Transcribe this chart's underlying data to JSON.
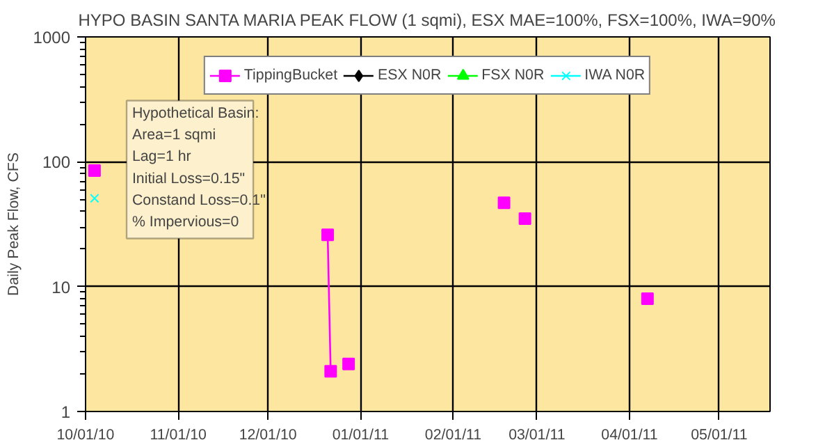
{
  "chart_data": {
    "type": "line",
    "title": "HYPO BASIN SANTA MARIA PEAK FLOW (1 sqmi), ESX MAE=100%, FSX=100%, IWA=90%",
    "ylabel": "Daily Peak Flow, CFS",
    "log": "y",
    "xlim": [
      "2010-10-01",
      "2011-05-18"
    ],
    "xticks": [
      {
        "value": "2010-10-01",
        "label": "10/01/10"
      },
      {
        "value": "2010-11-01",
        "label": "11/01/10"
      },
      {
        "value": "2010-12-01",
        "label": "12/01/10"
      },
      {
        "value": "2011-01-01",
        "label": "01/01/11"
      },
      {
        "value": "2011-02-01",
        "label": "02/01/11"
      },
      {
        "value": "2011-03-01",
        "label": "03/01/11"
      },
      {
        "value": "2011-04-01",
        "label": "04/01/11"
      },
      {
        "value": "2011-05-01",
        "label": "05/01/11"
      }
    ],
    "ylim": [
      1,
      1000
    ],
    "yticks": [
      1,
      10,
      100,
      1000
    ],
    "grid": true,
    "legend": "top",
    "series": [
      {
        "name": "TippingBucket",
        "color": "#ff00ff",
        "marker": "square",
        "x": [
          "2010-10-04",
          "2010-10-05",
          "2010-12-21",
          "2010-12-22",
          "2010-12-23",
          "2010-12-28",
          "2010-12-29",
          "2011-02-18",
          "2011-02-19",
          "2011-02-25",
          "2011-02-26",
          "2011-04-07"
        ],
        "values": [
          85,
          null,
          26,
          2.1,
          null,
          2.4,
          null,
          47,
          null,
          35,
          null,
          8
        ]
      },
      {
        "name": "ESX N0R",
        "color": "#000000",
        "marker": "diamond"
      },
      {
        "name": "FSX N0R",
        "color": "#00ff00",
        "marker": "triangle"
      },
      {
        "name": "IWA N0R",
        "color": "#00ffff",
        "marker": "cross",
        "x": [
          "2010-10-04"
        ],
        "values": [
          51
        ]
      }
    ],
    "annotations": [
      "Hypothetical Basin:",
      "Area=1  sqmi",
      "Lag=1 hr",
      "Initial Loss=0.15\"",
      "Constand Loss=0.1\"",
      "% Impervious=0"
    ]
  }
}
